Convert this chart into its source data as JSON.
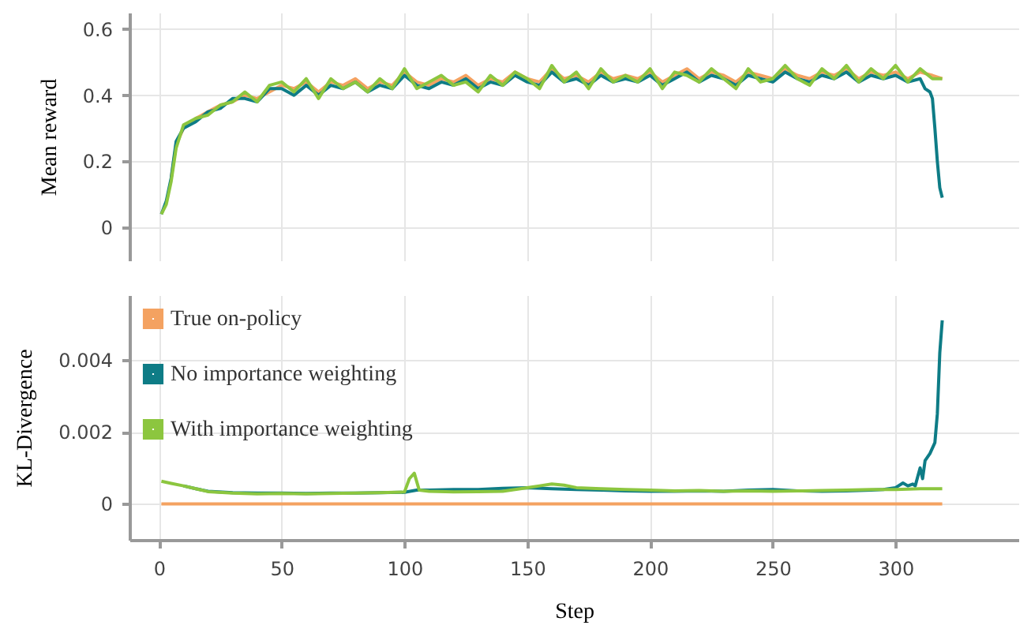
{
  "chart_data": [
    {
      "type": "line",
      "ylabel": "Mean reward",
      "xlim": [
        -12,
        350
      ],
      "ylim": [
        -0.1,
        0.65
      ],
      "xticks": [
        0,
        50,
        100,
        150,
        200,
        250,
        300
      ],
      "yticks": [
        {
          "value": 0,
          "label": "0"
        },
        0.2,
        0.4,
        0.6
      ],
      "grid": true,
      "legend": false,
      "tick_labels": "y",
      "series": [
        {
          "color": "#f4a261",
          "x": [
            5,
            7,
            10,
            15,
            20,
            25,
            30,
            35,
            40,
            45,
            50,
            55,
            60,
            65,
            70,
            75,
            80,
            85,
            90,
            95,
            100,
            105,
            110,
            115,
            120,
            125,
            130,
            135,
            140,
            145,
            150,
            155,
            160,
            165,
            170,
            175,
            180,
            185,
            190,
            195,
            200,
            205,
            210,
            215,
            220,
            225,
            230,
            235,
            240,
            245,
            250,
            255,
            260,
            265,
            270,
            275,
            280,
            285,
            290,
            295,
            300,
            305,
            310,
            315,
            319
          ],
          "values": [
            0.15,
            0.25,
            0.3,
            0.33,
            0.35,
            0.37,
            0.38,
            0.4,
            0.39,
            0.41,
            0.43,
            0.42,
            0.44,
            0.41,
            0.44,
            0.43,
            0.45,
            0.42,
            0.44,
            0.43,
            0.47,
            0.44,
            0.43,
            0.45,
            0.44,
            0.46,
            0.43,
            0.45,
            0.44,
            0.47,
            0.45,
            0.44,
            0.48,
            0.45,
            0.46,
            0.44,
            0.47,
            0.45,
            0.46,
            0.45,
            0.47,
            0.44,
            0.46,
            0.48,
            0.45,
            0.47,
            0.46,
            0.44,
            0.47,
            0.46,
            0.45,
            0.48,
            0.46,
            0.45,
            0.47,
            0.46,
            0.48,
            0.45,
            0.47,
            0.46,
            0.47,
            0.45,
            0.47,
            0.46,
            0.45
          ]
        },
        {
          "color": "#0e7c86",
          "x": [
            1,
            3,
            5,
            7,
            10,
            15,
            20,
            25,
            30,
            35,
            40,
            45,
            50,
            55,
            60,
            65,
            70,
            75,
            80,
            85,
            90,
            95,
            100,
            105,
            110,
            115,
            120,
            125,
            130,
            135,
            140,
            145,
            150,
            155,
            160,
            165,
            170,
            175,
            180,
            185,
            190,
            195,
            200,
            205,
            210,
            215,
            220,
            225,
            230,
            235,
            240,
            245,
            250,
            255,
            260,
            265,
            270,
            275,
            280,
            285,
            290,
            295,
            300,
            305,
            310,
            312,
            314,
            315,
            316,
            317,
            318,
            319
          ],
          "values": [
            0.04,
            0.08,
            0.15,
            0.26,
            0.3,
            0.32,
            0.35,
            0.36,
            0.39,
            0.39,
            0.38,
            0.42,
            0.42,
            0.4,
            0.43,
            0.4,
            0.43,
            0.42,
            0.44,
            0.41,
            0.43,
            0.42,
            0.46,
            0.43,
            0.42,
            0.44,
            0.43,
            0.45,
            0.42,
            0.44,
            0.43,
            0.46,
            0.44,
            0.43,
            0.47,
            0.44,
            0.45,
            0.43,
            0.46,
            0.44,
            0.45,
            0.44,
            0.46,
            0.43,
            0.45,
            0.47,
            0.44,
            0.46,
            0.45,
            0.43,
            0.46,
            0.45,
            0.44,
            0.47,
            0.45,
            0.44,
            0.46,
            0.45,
            0.47,
            0.44,
            0.46,
            0.45,
            0.46,
            0.44,
            0.45,
            0.42,
            0.41,
            0.39,
            0.3,
            0.2,
            0.12,
            0.09
          ]
        },
        {
          "color": "#8cc63f",
          "x": [
            1,
            3,
            5,
            7,
            10,
            15,
            20,
            25,
            30,
            35,
            40,
            45,
            50,
            55,
            60,
            65,
            70,
            75,
            80,
            85,
            90,
            95,
            100,
            105,
            110,
            115,
            120,
            125,
            130,
            135,
            140,
            145,
            150,
            155,
            160,
            165,
            170,
            175,
            180,
            185,
            190,
            195,
            200,
            205,
            210,
            215,
            220,
            225,
            230,
            235,
            240,
            245,
            250,
            255,
            260,
            265,
            270,
            275,
            280,
            285,
            290,
            295,
            300,
            305,
            310,
            315,
            319
          ],
          "values": [
            0.04,
            0.07,
            0.14,
            0.24,
            0.31,
            0.33,
            0.34,
            0.37,
            0.38,
            0.41,
            0.38,
            0.43,
            0.44,
            0.41,
            0.45,
            0.39,
            0.45,
            0.42,
            0.44,
            0.41,
            0.45,
            0.42,
            0.48,
            0.42,
            0.44,
            0.46,
            0.43,
            0.44,
            0.41,
            0.46,
            0.43,
            0.47,
            0.45,
            0.42,
            0.49,
            0.44,
            0.47,
            0.42,
            0.48,
            0.44,
            0.46,
            0.44,
            0.48,
            0.42,
            0.47,
            0.46,
            0.44,
            0.48,
            0.45,
            0.42,
            0.48,
            0.44,
            0.45,
            0.49,
            0.45,
            0.43,
            0.48,
            0.45,
            0.49,
            0.44,
            0.48,
            0.45,
            0.49,
            0.44,
            0.48,
            0.45,
            0.45
          ]
        }
      ]
    },
    {
      "type": "line",
      "xlabel": "Step",
      "ylabel": "KL-Divergence",
      "xlim": [
        -12,
        350
      ],
      "ylim": [
        -0.001,
        0.0058
      ],
      "xticks": [
        0,
        50,
        100,
        150,
        200,
        250,
        300
      ],
      "yticks": [
        {
          "value": 0,
          "label": "0"
        },
        0.002,
        0.004
      ],
      "grid": true,
      "legend": "top left",
      "series": [
        {
          "name": "True on-policy",
          "color": "#f4a261",
          "x": [
            1,
            319
          ],
          "values": [
            0,
            0
          ]
        },
        {
          "name": "No importance weighting",
          "color": "#0e7c86",
          "x": [
            10,
            15,
            20,
            30,
            40,
            50,
            60,
            70,
            80,
            90,
            100,
            105,
            110,
            120,
            130,
            140,
            150,
            160,
            170,
            180,
            190,
            200,
            210,
            220,
            230,
            240,
            250,
            260,
            270,
            280,
            290,
            295,
            300,
            303,
            305,
            307,
            308,
            310,
            311,
            312,
            313,
            314,
            316,
            317,
            318,
            319
          ],
          "values": [
            0.0005,
            0.00042,
            0.00035,
            0.00031,
            0.0003,
            0.0003,
            0.00029,
            0.0003,
            0.0003,
            0.00031,
            0.00032,
            0.00038,
            0.00038,
            0.0004,
            0.0004,
            0.00043,
            0.00045,
            0.00042,
            0.0004,
            0.00038,
            0.00036,
            0.00035,
            0.00035,
            0.00036,
            0.00035,
            0.00038,
            0.0004,
            0.00036,
            0.00035,
            0.00036,
            0.00038,
            0.0004,
            0.00045,
            0.00058,
            0.0005,
            0.00055,
            0.0005,
            0.001,
            0.0007,
            0.0012,
            0.0013,
            0.0014,
            0.0017,
            0.0025,
            0.0042,
            0.0051
          ]
        },
        {
          "name": "With importance weighting",
          "color": "#8cc63f",
          "x": [
            1,
            5,
            10,
            15,
            20,
            30,
            40,
            50,
            60,
            70,
            80,
            90,
            100,
            102,
            104,
            106,
            110,
            120,
            130,
            140,
            150,
            155,
            160,
            165,
            170,
            180,
            190,
            200,
            210,
            220,
            230,
            240,
            250,
            260,
            270,
            280,
            290,
            300,
            310,
            315,
            319
          ],
          "values": [
            0.00063,
            0.00057,
            0.0005,
            0.00042,
            0.00034,
            0.0003,
            0.00028,
            0.00029,
            0.00028,
            0.00029,
            0.0003,
            0.00031,
            0.00033,
            0.0007,
            0.00085,
            0.00038,
            0.00035,
            0.00033,
            0.00034,
            0.00035,
            0.00045,
            0.0005,
            0.00055,
            0.00052,
            0.00045,
            0.00042,
            0.0004,
            0.00038,
            0.00036,
            0.00037,
            0.00035,
            0.00036,
            0.00035,
            0.00036,
            0.00037,
            0.00038,
            0.0004,
            0.0004,
            0.00042,
            0.00042,
            0.00042
          ]
        }
      ]
    }
  ]
}
